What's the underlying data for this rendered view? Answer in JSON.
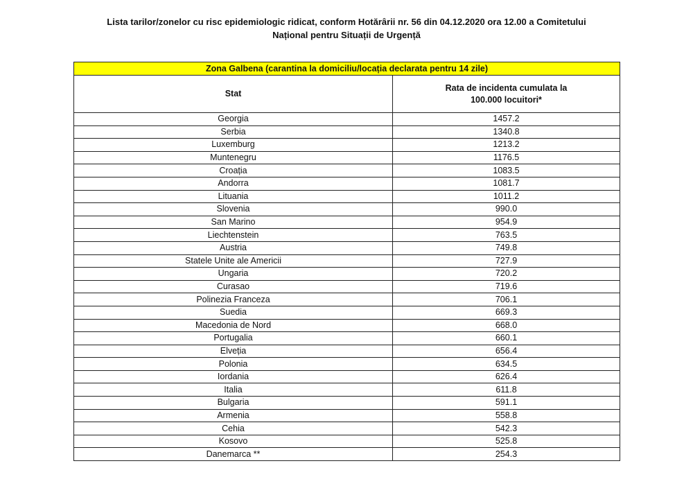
{
  "document": {
    "title_line1": "Lista tarilor/zonelor cu risc epidemiologic ridicat, conform Hotărârii nr. 56 din 04.12.2020 ora 12.00 a Comitetului",
    "title_line2": "Național pentru Situații de Urgență"
  },
  "table": {
    "zone_label": "Zona Galbena (carantina la domiciliu/locația declarata pentru 14 zile)",
    "zone_color": "#ffff00",
    "col_state": "Stat",
    "col_rate_line1": "Rata de incidenta cumulata la",
    "col_rate_line2": "100.000 locuitori*",
    "rows": [
      {
        "state": "Georgia",
        "rate": "1457.2"
      },
      {
        "state": "Serbia",
        "rate": "1340.8"
      },
      {
        "state": "Luxemburg",
        "rate": "1213.2"
      },
      {
        "state": "Muntenegru",
        "rate": "1176.5"
      },
      {
        "state": "Croația",
        "rate": "1083.5"
      },
      {
        "state": "Andorra",
        "rate": "1081.7"
      },
      {
        "state": "Lituania",
        "rate": "1011.2"
      },
      {
        "state": "Slovenia",
        "rate": "990.0"
      },
      {
        "state": "San Marino",
        "rate": "954.9"
      },
      {
        "state": "Liechtenstein",
        "rate": "763.5"
      },
      {
        "state": "Austria",
        "rate": "749.8"
      },
      {
        "state": "Statele Unite ale Americii",
        "rate": "727.9"
      },
      {
        "state": "Ungaria",
        "rate": "720.2"
      },
      {
        "state": "Curasao",
        "rate": "719.6"
      },
      {
        "state": "Polinezia Franceza",
        "rate": "706.1"
      },
      {
        "state": "Suedia",
        "rate": "669.3"
      },
      {
        "state": "Macedonia de Nord",
        "rate": "668.0"
      },
      {
        "state": "Portugalia",
        "rate": "660.1"
      },
      {
        "state": "Elveția",
        "rate": "656.4"
      },
      {
        "state": "Polonia",
        "rate": "634.5"
      },
      {
        "state": "Iordania",
        "rate": "626.4"
      },
      {
        "state": "Italia",
        "rate": "611.8"
      },
      {
        "state": "Bulgaria",
        "rate": "591.1"
      },
      {
        "state": "Armenia",
        "rate": "558.8"
      },
      {
        "state": "Cehia",
        "rate": "542.3"
      },
      {
        "state": "Kosovo",
        "rate": "525.8"
      },
      {
        "state": "Danemarca **",
        "rate": "254.3"
      }
    ]
  }
}
